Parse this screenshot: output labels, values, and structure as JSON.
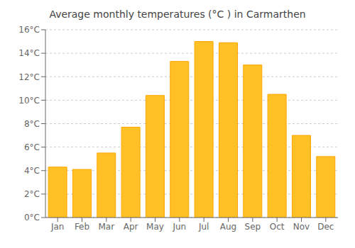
{
  "chart_data": {
    "type": "bar",
    "title": "Average monthly temperatures (°C ) in Carmarthen",
    "categories": [
      "Jan",
      "Feb",
      "Mar",
      "Apr",
      "May",
      "Jun",
      "Jul",
      "Aug",
      "Sep",
      "Oct",
      "Nov",
      "Dec"
    ],
    "values": [
      4.3,
      4.1,
      5.5,
      7.7,
      10.4,
      13.3,
      15.0,
      14.9,
      13.0,
      10.5,
      7.0,
      5.2
    ],
    "color": "#FFC125",
    "ylim": [
      0,
      16
    ],
    "yticks": [
      {
        "value": 0,
        "label": "0°C"
      },
      {
        "value": 2,
        "label": "2°C"
      },
      {
        "value": 4,
        "label": "4°C"
      },
      {
        "value": 6,
        "label": "6°C"
      },
      {
        "value": 8,
        "label": "8°C"
      },
      {
        "value": 10,
        "label": "10°C"
      },
      {
        "value": 12,
        "label": "12°C"
      },
      {
        "value": 14,
        "label": "14°C"
      },
      {
        "value": 16,
        "label": "16°C"
      }
    ],
    "grid": true
  }
}
